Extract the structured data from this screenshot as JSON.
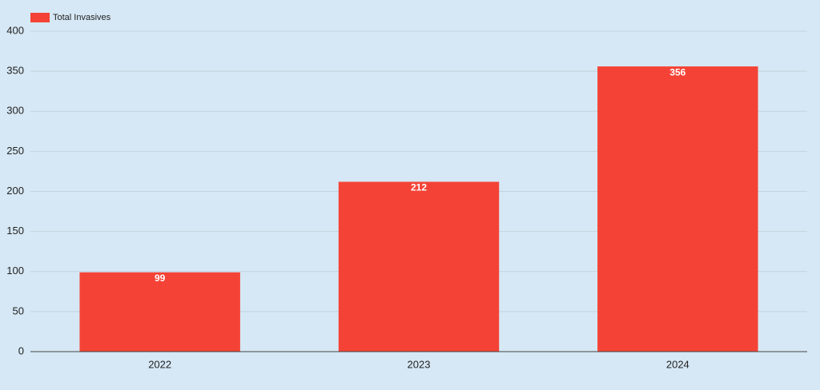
{
  "chart_data": {
    "type": "bar",
    "categories": [
      "2022",
      "2023",
      "2024"
    ],
    "series": [
      {
        "name": "Total Invasives",
        "color": "#f44336",
        "values": [
          99,
          212,
          356
        ]
      }
    ],
    "ylim": [
      0,
      400
    ],
    "yticks": [
      0,
      50,
      100,
      150,
      200,
      250,
      300,
      350,
      400
    ],
    "grid": true,
    "legend": "top-left"
  }
}
